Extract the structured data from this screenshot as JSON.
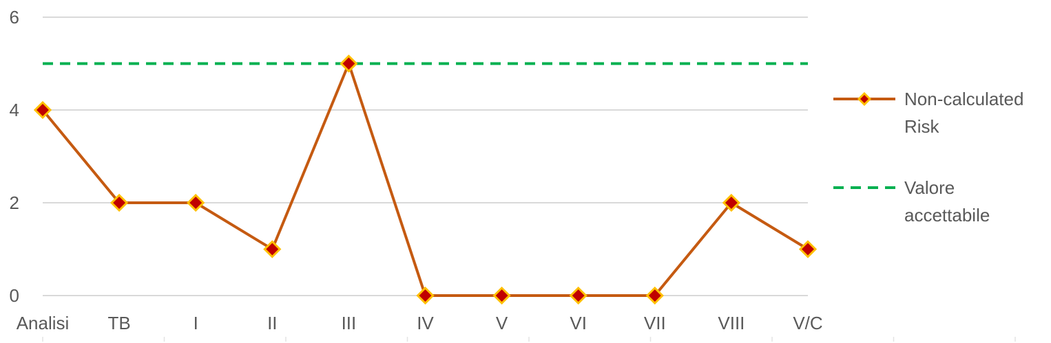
{
  "chart_data": {
    "type": "line",
    "categories": [
      "Analisi",
      "TB",
      "I",
      "II",
      "III",
      "IV",
      "V",
      "VI",
      "VII",
      "VIII",
      "V/C"
    ],
    "ylim": [
      0,
      6
    ],
    "yticks": [
      0,
      2,
      4,
      6
    ],
    "grid": true,
    "legend_position": "right",
    "series": [
      {
        "name": "Non-calculated Risk",
        "values": [
          4,
          2,
          2,
          1,
          5,
          0,
          0,
          0,
          0,
          2,
          1
        ],
        "line_color": "#C55A11",
        "marker": "diamond",
        "marker_fill": "#C00000",
        "marker_edge": "#FFC000"
      },
      {
        "name": "Valore accettabile",
        "values": [
          5,
          5,
          5,
          5,
          5,
          5,
          5,
          5,
          5,
          5,
          5
        ],
        "line_color": "#00B050",
        "line_style": "dashed"
      }
    ]
  },
  "legend": {
    "items": [
      {
        "lines": [
          "Non-calculated",
          "Risk"
        ]
      },
      {
        "lines": [
          "Valore",
          "accettabile"
        ]
      }
    ]
  }
}
